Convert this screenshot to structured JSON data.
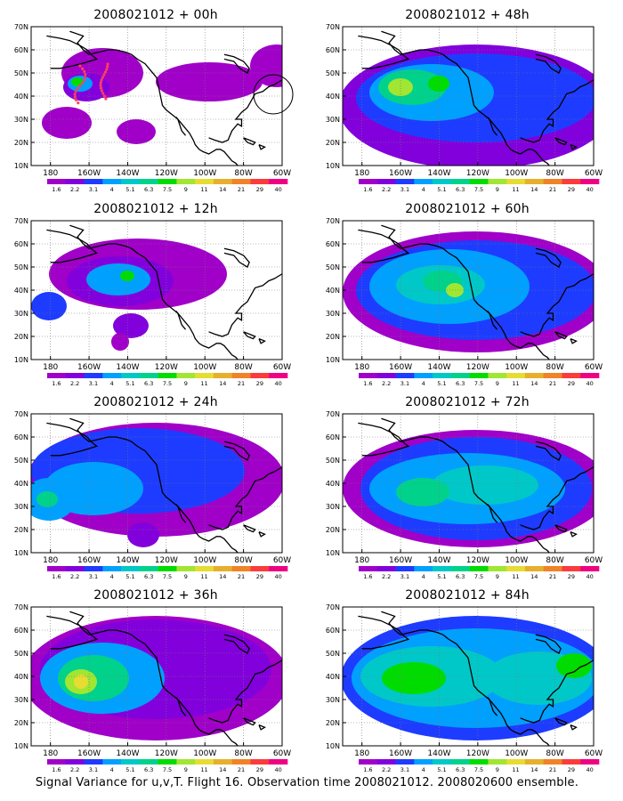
{
  "panels": [
    {
      "title": "2008021012 + 00h",
      "lead": "00h"
    },
    {
      "title": "2008021012 + 48h",
      "lead": "48h"
    },
    {
      "title": "2008021012 + 12h",
      "lead": "12h"
    },
    {
      "title": "2008021012 + 60h",
      "lead": "60h"
    },
    {
      "title": "2008021012 + 24h",
      "lead": "24h"
    },
    {
      "title": "2008021012 + 72h",
      "lead": "72h"
    },
    {
      "title": "2008021012 + 36h",
      "lead": "36h"
    },
    {
      "title": "2008021012 + 84h",
      "lead": "84h"
    }
  ],
  "lat_labels": [
    "70N",
    "60N",
    "50N",
    "40N",
    "30N",
    "20N",
    "10N"
  ],
  "lon_labels": [
    "180",
    "160W",
    "140W",
    "120W",
    "100W",
    "80W",
    "60W"
  ],
  "colorbar": {
    "labels": [
      "1.6",
      "2.2",
      "3.1",
      "4",
      "5.1",
      "6.3",
      "7.5",
      "9",
      "11",
      "14",
      "21",
      "29",
      "40"
    ],
    "colors": [
      "#a000c8",
      "#8200dc",
      "#1e3cff",
      "#00a0ff",
      "#00c8c8",
      "#00d28c",
      "#00dc00",
      "#a0e632",
      "#e6dc32",
      "#e6af2d",
      "#f08228",
      "#fa3c3c",
      "#f00082"
    ]
  },
  "footer": "Signal Variance for u,v,T. Flight 16. Observation time 2008021012. 2008020600 ensemble."
}
